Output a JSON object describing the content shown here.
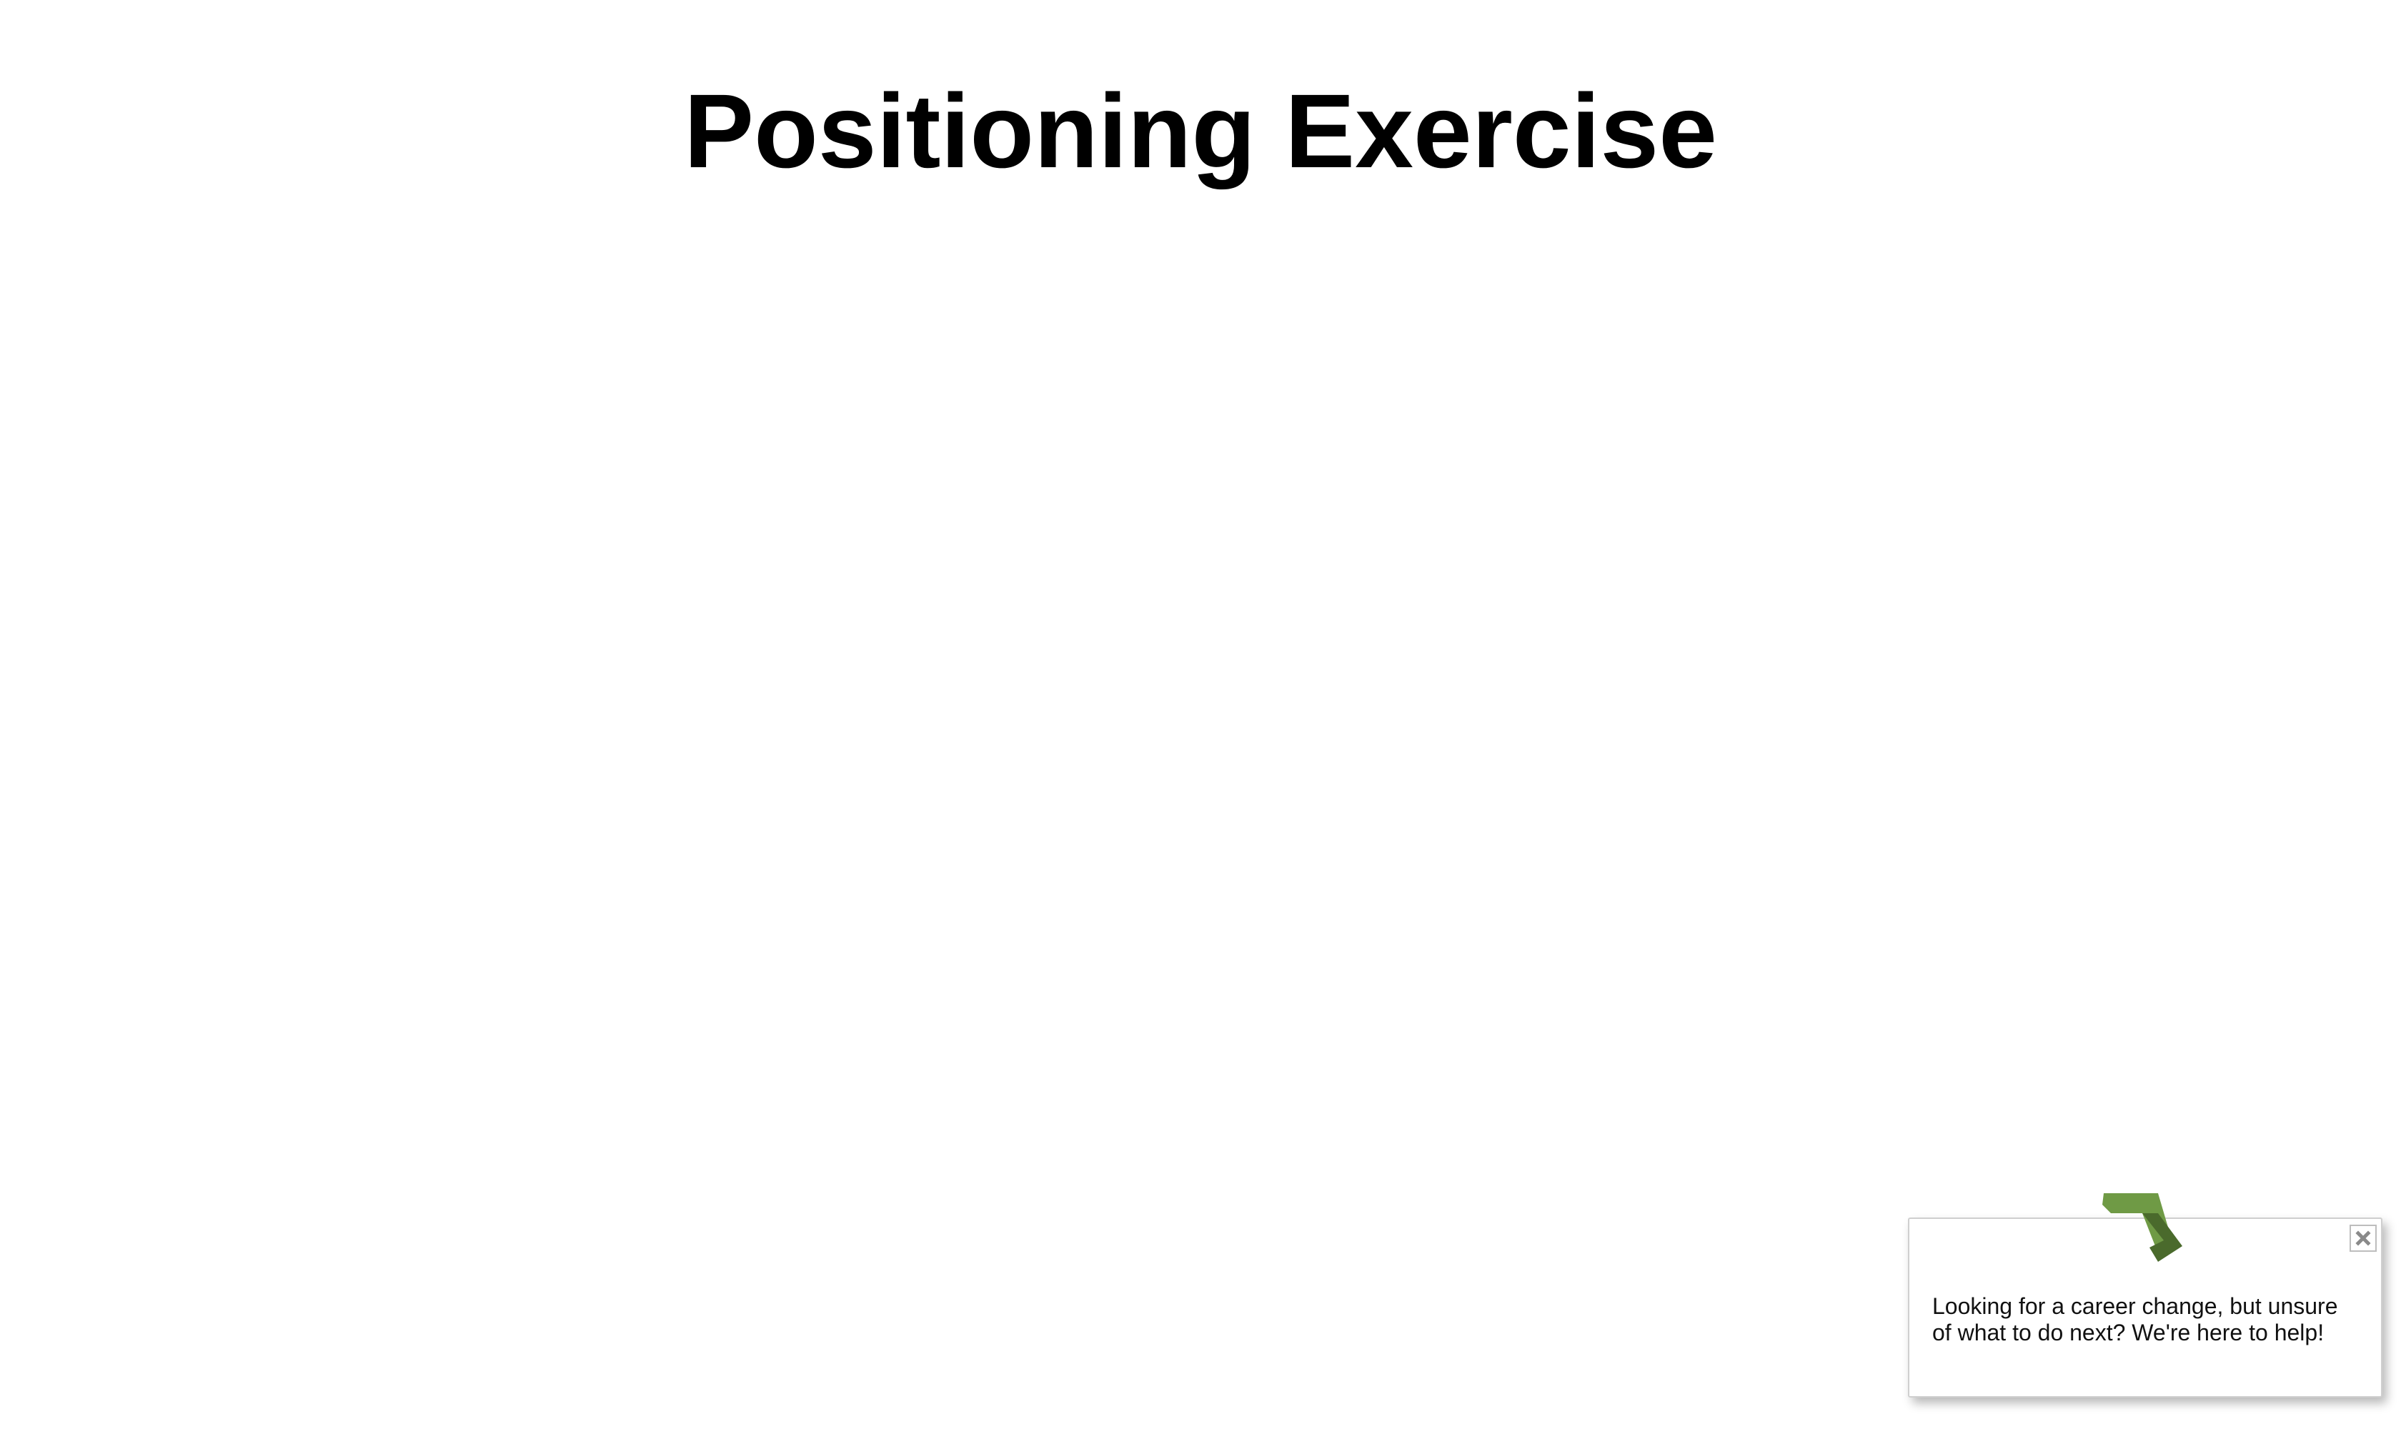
{
  "page": {
    "title": "Positioning Exercise"
  },
  "popup": {
    "logo_icon": "chevron-arrow-logo-icon",
    "close_icon": "close-icon",
    "message": "Looking for a career change, but unsure of what to do next? We're here to help!",
    "colors": {
      "logo_light": "#6f9a45",
      "logo_dark": "#4a6a2c",
      "border": "#cfcfcf"
    }
  }
}
